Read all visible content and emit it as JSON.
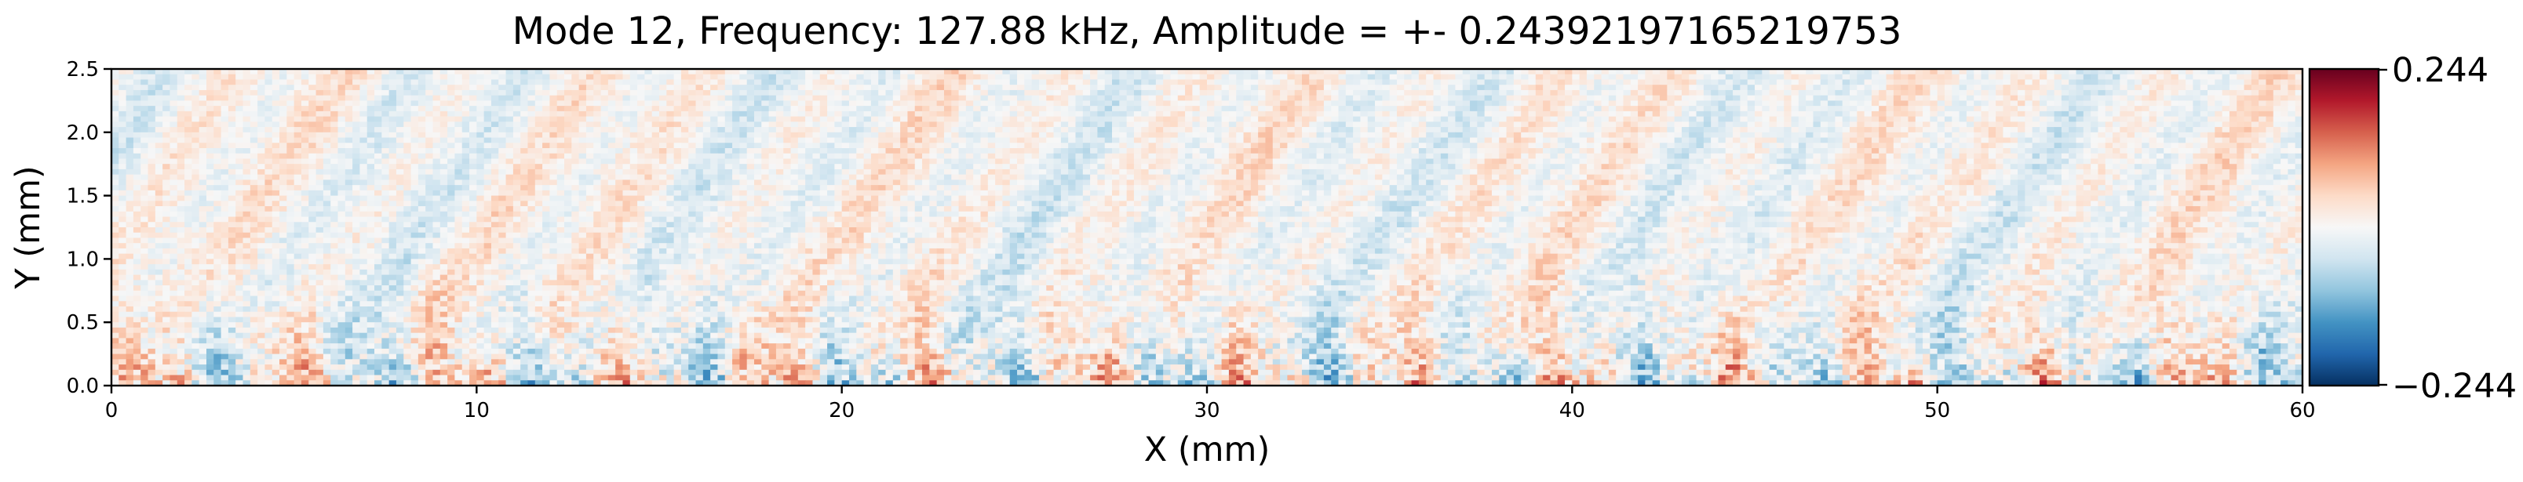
{
  "chart_data": {
    "type": "heatmap",
    "title": "Mode 12, Frequency: 127.88 kHz, Amplitude = +- 0.24392197165219753",
    "xlabel": "X (mm)",
    "ylabel": "Y (mm)",
    "xlim": [
      0,
      60
    ],
    "ylim": [
      0,
      2.5
    ],
    "x_ticks": [
      "0",
      "10",
      "20",
      "30",
      "40",
      "50",
      "60"
    ],
    "x_tick_values": [
      0,
      10,
      20,
      30,
      40,
      50,
      60
    ],
    "y_ticks": [
      "0.0",
      "0.5",
      "1.0",
      "1.5",
      "2.0",
      "2.5"
    ],
    "y_tick_values": [
      0,
      0.5,
      1.0,
      1.5,
      2.0,
      2.5
    ],
    "colormap": "RdBu_r",
    "colorbar": {
      "max_label": "0.244",
      "min_label": "−0.244",
      "vmin": -0.24392197165219753,
      "vmax": 0.24392197165219753
    },
    "grid": false,
    "colors": {
      "negative": "#053061",
      "neutral": "#f7f7f7",
      "positive": "#67001f"
    }
  }
}
